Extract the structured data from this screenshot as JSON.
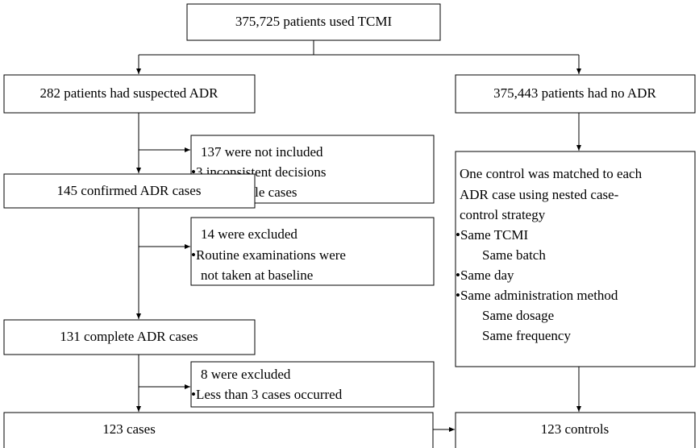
{
  "nodes": [
    {
      "label": "375,725 patients used TCMI"
    },
    {
      "label": "282 patients had suspected ADR"
    },
    {
      "label": "375,443 patients had no ADR"
    },
    {
      "lines": [
        "137 were not included",
        "•3 inconsistent decisions",
        "•134 possible cases"
      ]
    },
    {
      "label": "145 confirmed ADR cases"
    },
    {
      "lines": [
        "14 were excluded",
        "•Routine examinations  were",
        "not taken at baseline"
      ]
    },
    {
      "label": "131 complete ADR cases"
    },
    {
      "lines": [
        "8 were excluded",
        "•Less than 3 cases occurred"
      ]
    },
    {
      "label": "123 cases"
    },
    {
      "lines": [
        "One control was matched to each",
        "ADR case using nested case-",
        "control strategy",
        "•Same TCMI",
        "Same batch",
        "•Same day",
        "•Same administration method",
        "Same dosage",
        "Same frequency"
      ]
    },
    {
      "label": "123 controls"
    }
  ]
}
